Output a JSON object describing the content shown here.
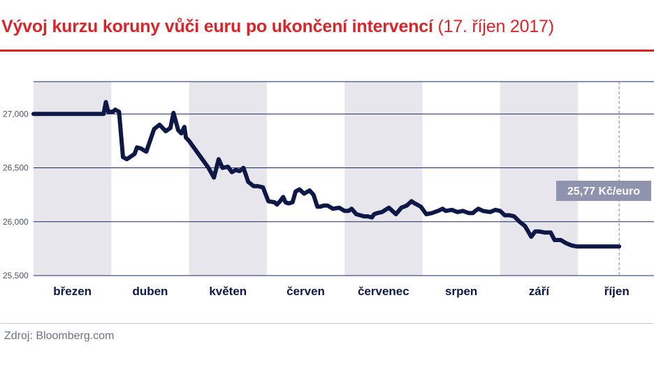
{
  "title": {
    "main": "Vývoj kurzu koruny vůči euru po ukončení intervencí",
    "sub": "(17. říjen 2017)"
  },
  "source": "Zdroj: Bloomberg.com",
  "colors": {
    "title": "#d7262b",
    "rule": "#e11f26",
    "line": "#0d1847",
    "band": "#e6e6ec",
    "grid": "#1f2a5c",
    "callout": "#8f93ad"
  },
  "chart_data": {
    "type": "line",
    "title": "Vývoj kurzu koruny vůči euru po ukončení intervencí (17. říjen 2017)",
    "xlabel": "",
    "ylabel": "",
    "ylim": [
      25500,
      27300
    ],
    "yticks": [
      25500,
      26000,
      26500,
      27000
    ],
    "ytick_labels": [
      "25,500",
      "26,000",
      "26,500",
      "27,000"
    ],
    "grid": true,
    "shaded_alternate_months": true,
    "months": [
      "březen",
      "duben",
      "květen",
      "červen",
      "červenec",
      "srpen",
      "září",
      "říjen"
    ],
    "x_unit": "months since 1 March 2017",
    "series": [
      {
        "name": "",
        "color": "#0d1847",
        "x": [
          0,
          0.3,
          0.6,
          0.9,
          0.93,
          0.96,
          0.99,
          1.02,
          1.05,
          1.1,
          1.15,
          1.2,
          1.3,
          1.33,
          1.38,
          1.45,
          1.55,
          1.62,
          1.7,
          1.76,
          1.8,
          1.86,
          1.9,
          1.94,
          1.96,
          2.0,
          2.03,
          2.07,
          2.1,
          2.17,
          2.25,
          2.32,
          2.38,
          2.43,
          2.5,
          2.55,
          2.6,
          2.65,
          2.7,
          2.76,
          2.83,
          2.88,
          2.95,
          3.02,
          3.1,
          3.13,
          3.17,
          3.21,
          3.24,
          3.28,
          3.33,
          3.37,
          3.42,
          3.48,
          3.55,
          3.6,
          3.65,
          3.69,
          3.73,
          3.78,
          3.85,
          3.93,
          4.0,
          4.05,
          4.09,
          4.15,
          4.2,
          4.25,
          4.3,
          4.35,
          4.38,
          4.42,
          4.48,
          4.57,
          4.66,
          4.73,
          4.8,
          4.86,
          4.9,
          4.93,
          4.98,
          5.05,
          5.12,
          5.2,
          5.23,
          5.26,
          5.3,
          5.38,
          5.45,
          5.52,
          5.6,
          5.65,
          5.68,
          5.72,
          5.78,
          5.87,
          5.94,
          6.0,
          6.06,
          6.12,
          6.18,
          6.25,
          6.32,
          6.4,
          6.45,
          6.5,
          6.57,
          6.65,
          6.7,
          6.74,
          6.78,
          6.85,
          6.92,
          6.99,
          7.05,
          7.1,
          7.14,
          7.2,
          7.27,
          7.35,
          7.41,
          7.47,
          7.53
        ],
        "values": [
          27000,
          27000,
          27000,
          27000,
          27110,
          27020,
          27020,
          27020,
          27040,
          27020,
          26600,
          26580,
          26630,
          26690,
          26680,
          26650,
          26860,
          26900,
          26840,
          26870,
          27010,
          26850,
          26820,
          26880,
          26780,
          26750,
          26720,
          26680,
          26650,
          26580,
          26500,
          26410,
          26580,
          26500,
          26510,
          26460,
          26480,
          26470,
          26500,
          26370,
          26330,
          26330,
          26320,
          26190,
          26180,
          26160,
          26190,
          26230,
          26180,
          26170,
          26180,
          26280,
          26300,
          26260,
          26290,
          26250,
          26140,
          26140,
          26150,
          26150,
          26120,
          26130,
          26100,
          26100,
          26120,
          26070,
          26060,
          26050,
          26050,
          26040,
          26070,
          26080,
          26090,
          26130,
          26070,
          26130,
          26150,
          26190,
          26170,
          26160,
          26140,
          26070,
          26080,
          26100,
          26110,
          26120,
          26100,
          26110,
          26090,
          26100,
          26080,
          26080,
          26100,
          26120,
          26100,
          26090,
          26110,
          26100,
          26060,
          26060,
          26050,
          26000,
          25960,
          25860,
          25910,
          25910,
          25900,
          25900,
          25830,
          25830,
          25830,
          25800,
          25780,
          25770,
          25770,
          25770,
          25770,
          25770,
          25770,
          25770,
          25770,
          25770,
          25770
        ]
      }
    ],
    "annotation": {
      "label": "25,77 Kč/euro",
      "marker": "dashed vertical line at end of series"
    }
  }
}
